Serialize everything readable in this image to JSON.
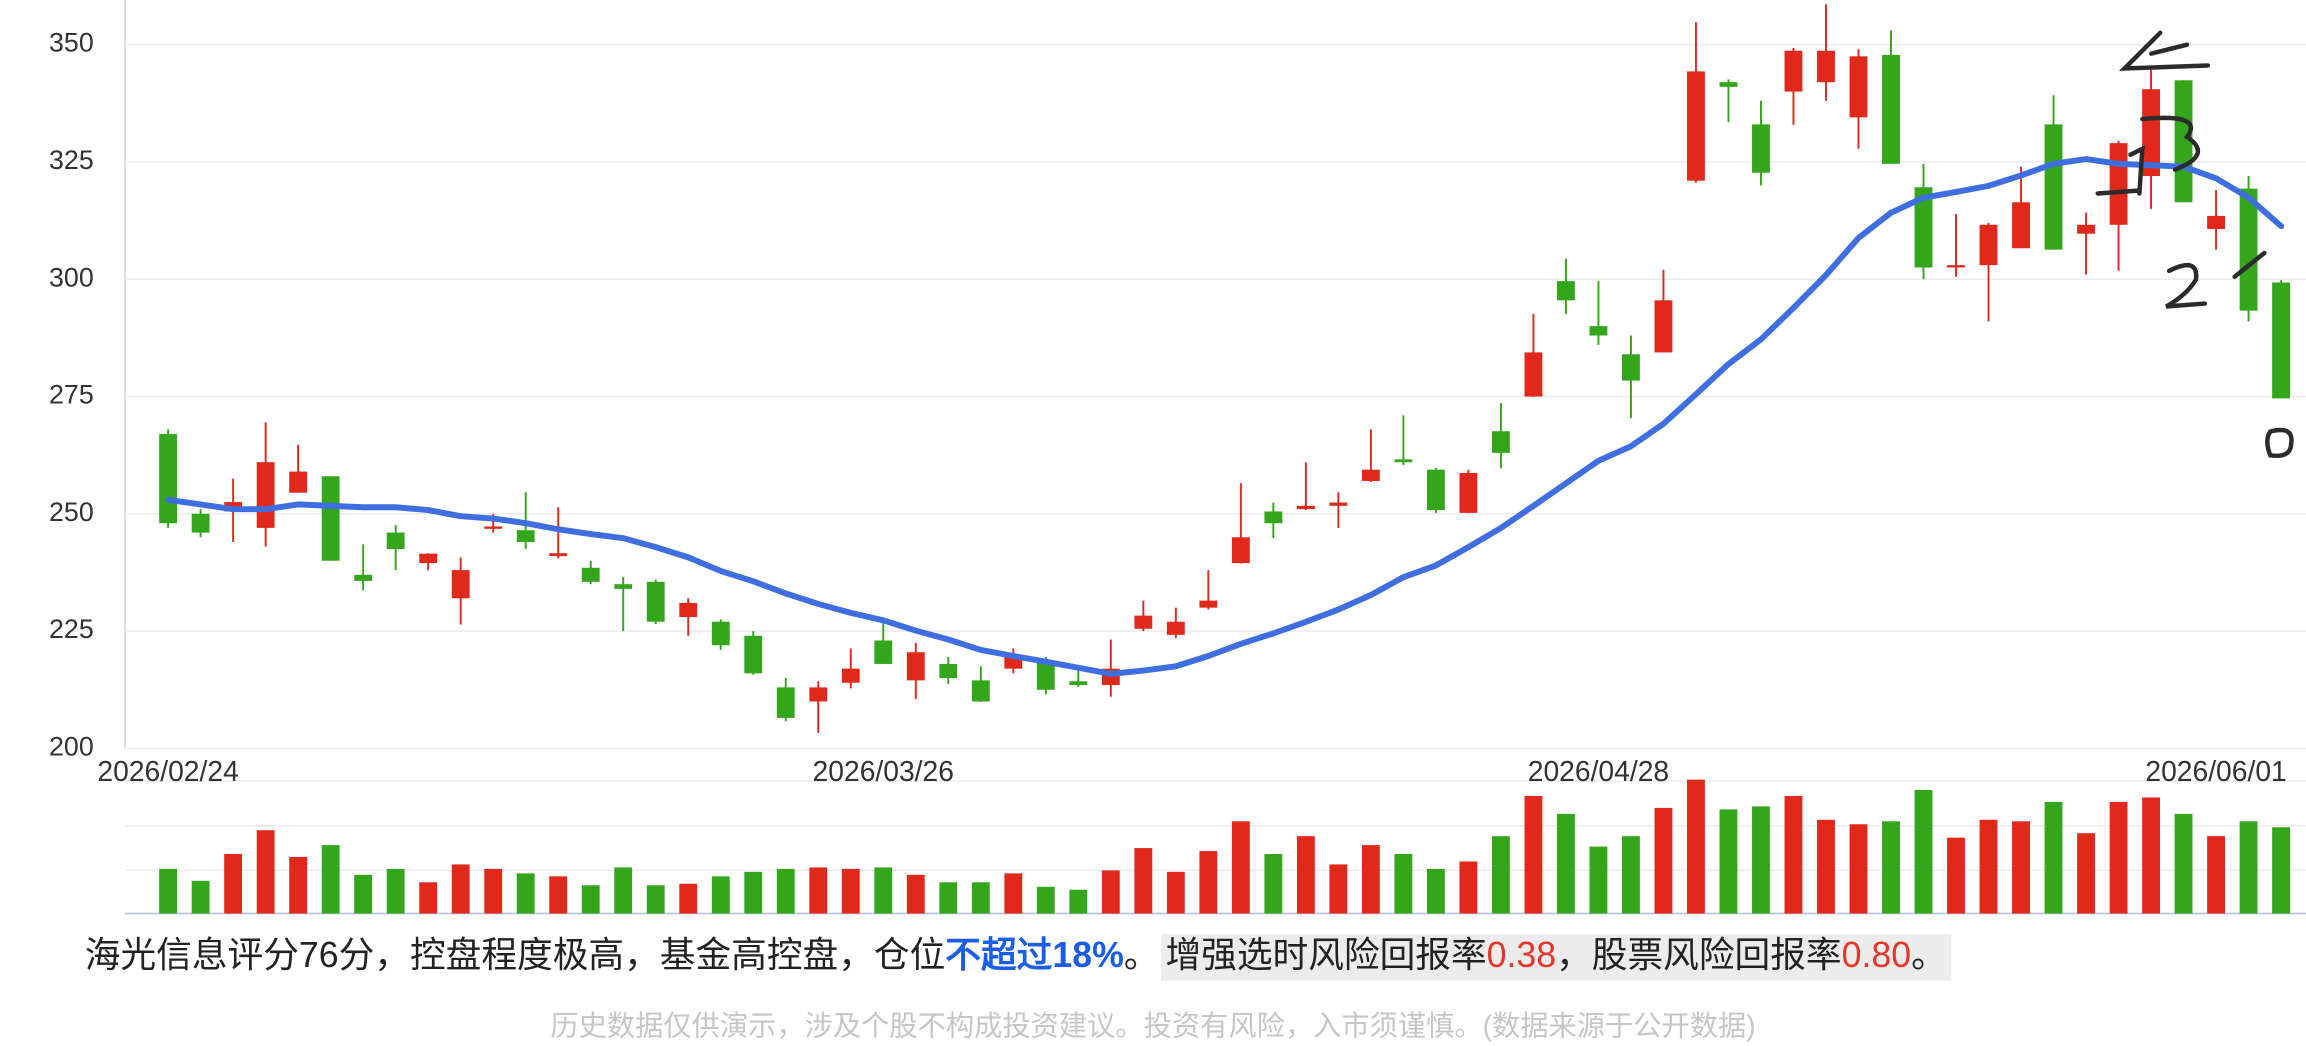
{
  "chart_data": {
    "type": "candlestick",
    "categories": [
      "2026/02/24",
      null,
      null,
      null,
      null,
      null,
      null,
      null,
      null,
      null,
      null,
      null,
      null,
      null,
      null,
      null,
      null,
      null,
      null,
      null,
      null,
      null,
      "2026/03/26",
      null,
      null,
      null,
      null,
      null,
      null,
      null,
      null,
      null,
      null,
      null,
      null,
      null,
      null,
      null,
      null,
      null,
      null,
      null,
      null,
      null,
      "2026/04/28",
      null,
      null,
      null,
      null,
      null,
      null,
      null,
      null,
      null,
      null,
      null,
      null,
      null,
      null,
      null,
      null,
      null,
      null,
      "2026/06/01",
      null,
      null
    ],
    "open": [
      267,
      250,
      250.5,
      247,
      254.5,
      258,
      237,
      246,
      239.5,
      232,
      246.8,
      246.5,
      241,
      238.5,
      235,
      235.5,
      228,
      227,
      224,
      213,
      210,
      214,
      223,
      214.5,
      218,
      214.5,
      217,
      218.5,
      214.3,
      213.5,
      225.5,
      224.2,
      230,
      239.5,
      250.5,
      251,
      251.7,
      257,
      261.6,
      259.4,
      250.2,
      267.6,
      275,
      299.6,
      290,
      284,
      284.4,
      321,
      342,
      333,
      340,
      342,
      334.5,
      347.8,
      319.6,
      302.5,
      303,
      306.6,
      333,
      309.7,
      311.6,
      322,
      342.4,
      310.7,
      319.3,
      299.3
    ],
    "close": [
      248,
      246,
      252.5,
      261,
      259,
      240,
      235.7,
      242.5,
      241.5,
      238,
      247.3,
      244,
      241.6,
      235.5,
      234,
      227,
      231,
      222,
      216,
      206.5,
      213,
      217,
      218,
      220.5,
      215,
      210,
      220,
      212.5,
      213.5,
      217,
      228.3,
      227,
      231.5,
      245,
      248,
      251.7,
      252.4,
      259.4,
      261,
      250.8,
      258.7,
      263,
      284.4,
      295.5,
      288,
      278.4,
      295.5,
      344.3,
      341,
      322.7,
      348.7,
      348.7,
      347.5,
      324.6,
      302.5,
      303,
      311.6,
      316.4,
      306.3,
      311.6,
      329,
      340.5,
      316.4,
      313.5,
      293.3,
      274.6
    ],
    "high": [
      268,
      251,
      257.5,
      269.5,
      264.7,
      258,
      243.5,
      247.6,
      241.6,
      240.7,
      250,
      254.6,
      251.4,
      240,
      236.5,
      236,
      232,
      227.5,
      225,
      215,
      214.3,
      221.3,
      226.7,
      222.5,
      219.5,
      217.5,
      221.3,
      219.5,
      216.8,
      223.2,
      231.5,
      230,
      238,
      256.5,
      252.4,
      261,
      254.6,
      268,
      271,
      259.8,
      259.4,
      273.6,
      292.6,
      304.4,
      299.6,
      288,
      302,
      354.8,
      342.6,
      338,
      349.3,
      358.6,
      349,
      353,
      324.6,
      313.9,
      312,
      324,
      339.2,
      314.2,
      329.5,
      344.6,
      342.4,
      319,
      322,
      299.8
    ],
    "low": [
      247,
      245,
      244,
      243,
      254.5,
      240,
      233.7,
      238,
      238,
      226.4,
      246,
      242.5,
      240.5,
      235,
      225,
      226.5,
      224,
      221,
      215.7,
      205.8,
      203.3,
      212.8,
      218,
      210.5,
      213.7,
      209.9,
      216,
      211.5,
      213.1,
      211,
      225,
      223.5,
      229.6,
      239.4,
      244.8,
      250.8,
      247,
      256.8,
      260.4,
      250.2,
      250.2,
      259.7,
      274.9,
      292.6,
      286,
      270.4,
      284.4,
      320.6,
      333.5,
      320,
      332.9,
      338,
      327.8,
      324.6,
      300,
      300.5,
      291,
      306.6,
      306.3,
      301,
      301.8,
      315,
      316.4,
      306.3,
      291,
      274.6
    ],
    "ma": [
      253,
      252,
      251,
      251,
      252,
      251.7,
      251.4,
      251.4,
      250.8,
      249.5,
      249,
      248,
      246.7,
      245.7,
      244.8,
      242.9,
      240.7,
      237.8,
      235.6,
      233,
      230.8,
      228.9,
      227.3,
      225.1,
      223.2,
      221,
      219.7,
      218.5,
      217.2,
      215.9,
      216.6,
      217.5,
      219.7,
      222.3,
      224.5,
      227,
      229.6,
      232.7,
      236.5,
      239,
      242.9,
      247,
      251.7,
      256.5,
      261.3,
      264.4,
      269.2,
      275.5,
      281.9,
      287.2,
      293.9,
      300.9,
      308.8,
      314.2,
      317.4,
      318.6,
      319.9,
      322.1,
      324.6,
      325.6,
      324.6,
      324.3,
      324,
      321.5,
      317.4,
      311.3
    ],
    "volume": [
      30,
      22,
      40,
      56,
      38,
      46,
      26,
      30,
      21,
      33,
      30,
      27,
      25,
      19,
      31,
      19,
      20,
      25,
      28,
      30,
      31,
      30,
      31,
      26,
      21,
      21,
      27,
      18,
      16,
      29,
      44,
      28,
      42,
      62,
      40,
      52,
      33,
      46,
      40,
      30,
      35,
      52,
      79,
      67,
      45,
      52,
      71,
      90,
      70,
      72,
      79,
      63,
      60,
      62,
      83,
      51,
      63,
      62,
      75,
      54,
      75,
      78,
      67,
      52,
      62,
      58
    ],
    "volume_ylim": [
      0,
      89
    ],
    "ylim": [
      200,
      359.5
    ],
    "yticks": [
      200,
      225,
      250,
      275,
      300,
      325,
      350
    ],
    "grid": true,
    "up_color": "#e0281b",
    "down_color": "#33a61c",
    "ma_color": "#3f6ee0"
  },
  "text": {
    "summary_parts": [
      "海光信息评分76分，控盘程度极高，基金高控盘，仓位",
      "不超过18%",
      "。"
    ],
    "highlight_parts": [
      "增强选时风险回报率",
      "0.38",
      "，股票风险回报率",
      "0.80",
      "。"
    ],
    "disclaimer": "历史数据仅供演示，涉及个股不构成投资建议。投资有风险，入市须谨慎。(数据来源于公开数据)"
  }
}
